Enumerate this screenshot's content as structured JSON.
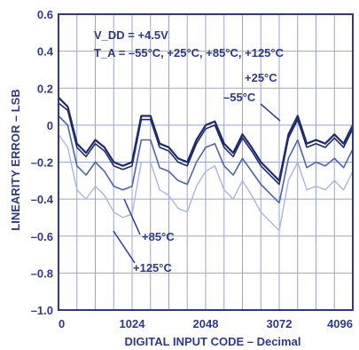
{
  "chart_data": {
    "type": "line",
    "title": "",
    "xlabel": "DIGITAL INPUT CODE – Decimal",
    "ylabel": "LINEARITY ERROR – LSB",
    "xlim": [
      0,
      4096
    ],
    "ylim": [
      -1.0,
      0.6
    ],
    "x_ticks": [
      0,
      1024,
      2048,
      3072,
      4096
    ],
    "x_tick_labels": [
      "0",
      "1024",
      "2048",
      "3072",
      "4096"
    ],
    "y_ticks": [
      0.6,
      0.4,
      0.2,
      0,
      -0.2,
      -0.4,
      -0.6,
      -0.8,
      -1.0
    ],
    "y_tick_labels": [
      "0.6",
      "0.4",
      "0.2",
      "0",
      "–0.2",
      "–0.4",
      "–0.6",
      "–0.8",
      "–1.0"
    ],
    "grid": true,
    "conditions": [
      "V_DD = +4.5V",
      "T_A = –55°C, +25°C, +85°C, +125°C"
    ],
    "x": [
      0,
      128,
      256,
      384,
      512,
      640,
      768,
      896,
      1024,
      1152,
      1280,
      1408,
      1536,
      1664,
      1792,
      1920,
      2048,
      2176,
      2304,
      2432,
      2560,
      2688,
      2816,
      2944,
      3072,
      3200,
      3328,
      3456,
      3584,
      3712,
      3840,
      3968,
      4096
    ],
    "series": [
      {
        "name": "+25°C",
        "color": "#1f2a6b",
        "values": [
          0.15,
          0.1,
          -0.1,
          -0.15,
          -0.08,
          -0.12,
          -0.2,
          -0.22,
          -0.2,
          0.05,
          0.05,
          -0.1,
          -0.12,
          -0.18,
          -0.2,
          -0.08,
          0.0,
          0.02,
          -0.1,
          -0.15,
          -0.05,
          -0.12,
          -0.2,
          -0.25,
          -0.3,
          -0.05,
          0.05,
          -0.1,
          -0.08,
          -0.1,
          -0.05,
          -0.1,
          0.0
        ]
      },
      {
        "name": "–55°C",
        "color": "#1f2a6b",
        "values": [
          0.12,
          0.08,
          -0.12,
          -0.17,
          -0.1,
          -0.14,
          -0.22,
          -0.24,
          -0.22,
          0.03,
          0.03,
          -0.12,
          -0.14,
          -0.2,
          -0.22,
          -0.1,
          -0.02,
          0.0,
          -0.12,
          -0.17,
          -0.07,
          -0.14,
          -0.22,
          -0.27,
          -0.32,
          -0.07,
          0.03,
          -0.12,
          -0.1,
          -0.12,
          -0.07,
          -0.12,
          -0.02
        ]
      },
      {
        "name": "+85°C",
        "color": "#4c65a8",
        "values": [
          0.05,
          0.0,
          -0.22,
          -0.27,
          -0.2,
          -0.25,
          -0.33,
          -0.35,
          -0.33,
          -0.08,
          -0.08,
          -0.23,
          -0.25,
          -0.3,
          -0.32,
          -0.2,
          -0.12,
          -0.1,
          -0.22,
          -0.27,
          -0.18,
          -0.25,
          -0.32,
          -0.37,
          -0.42,
          -0.18,
          -0.08,
          -0.23,
          -0.2,
          -0.22,
          -0.18,
          -0.23,
          -0.13
        ]
      },
      {
        "name": "+125°C",
        "color": "#aab6dc",
        "values": [
          -0.05,
          -0.12,
          -0.35,
          -0.4,
          -0.33,
          -0.38,
          -0.47,
          -0.5,
          -0.48,
          -0.2,
          -0.2,
          -0.35,
          -0.38,
          -0.45,
          -0.47,
          -0.33,
          -0.25,
          -0.22,
          -0.35,
          -0.4,
          -0.3,
          -0.38,
          -0.47,
          -0.52,
          -0.57,
          -0.3,
          -0.2,
          -0.35,
          -0.33,
          -0.35,
          -0.3,
          -0.35,
          -0.25
        ]
      }
    ]
  }
}
